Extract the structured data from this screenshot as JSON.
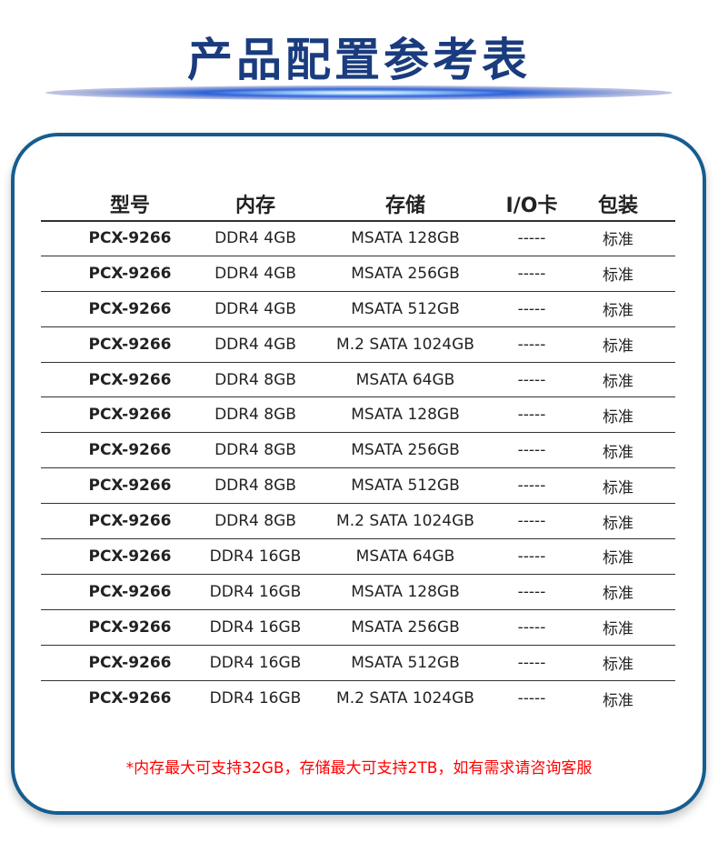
{
  "title": "产品配置参考表",
  "colors": {
    "title": "#1a3c7e",
    "border": "#155d8f",
    "note": "#ff0000"
  },
  "table": {
    "headers": [
      "型号",
      "内存",
      "存储",
      "I/O卡",
      "包装"
    ],
    "rows": [
      [
        "PCX-9266",
        "DDR4 4GB",
        "MSATA 128GB",
        "-----",
        "标准"
      ],
      [
        "PCX-9266",
        "DDR4 4GB",
        "MSATA 256GB",
        "-----",
        "标准"
      ],
      [
        "PCX-9266",
        "DDR4 4GB",
        "MSATA 512GB",
        "-----",
        "标准"
      ],
      [
        "PCX-9266",
        "DDR4 4GB",
        "M.2 SATA 1024GB",
        "-----",
        "标准"
      ],
      [
        "PCX-9266",
        "DDR4 8GB",
        "MSATA 64GB",
        "-----",
        "标准"
      ],
      [
        "PCX-9266",
        "DDR4 8GB",
        "MSATA 128GB",
        "-----",
        "标准"
      ],
      [
        "PCX-9266",
        "DDR4 8GB",
        "MSATA 256GB",
        "-----",
        "标准"
      ],
      [
        "PCX-9266",
        "DDR4 8GB",
        "MSATA 512GB",
        "-----",
        "标准"
      ],
      [
        "PCX-9266",
        "DDR4 8GB",
        "M.2 SATA 1024GB",
        "-----",
        "标准"
      ],
      [
        "PCX-9266",
        "DDR4 16GB",
        "MSATA 64GB",
        "-----",
        "标准"
      ],
      [
        "PCX-9266",
        "DDR4 16GB",
        "MSATA 128GB",
        "-----",
        "标准"
      ],
      [
        "PCX-9266",
        "DDR4 16GB",
        "MSATA 256GB",
        "-----",
        "标准"
      ],
      [
        "PCX-9266",
        "DDR4 16GB",
        "MSATA 512GB",
        "-----",
        "标准"
      ],
      [
        "PCX-9266",
        "DDR4 16GB",
        "M.2 SATA 1024GB",
        "-----",
        "标准"
      ]
    ]
  },
  "note": "*内存最大可支持32GB，存储最大可支持2TB，如有需求请咨询客服"
}
